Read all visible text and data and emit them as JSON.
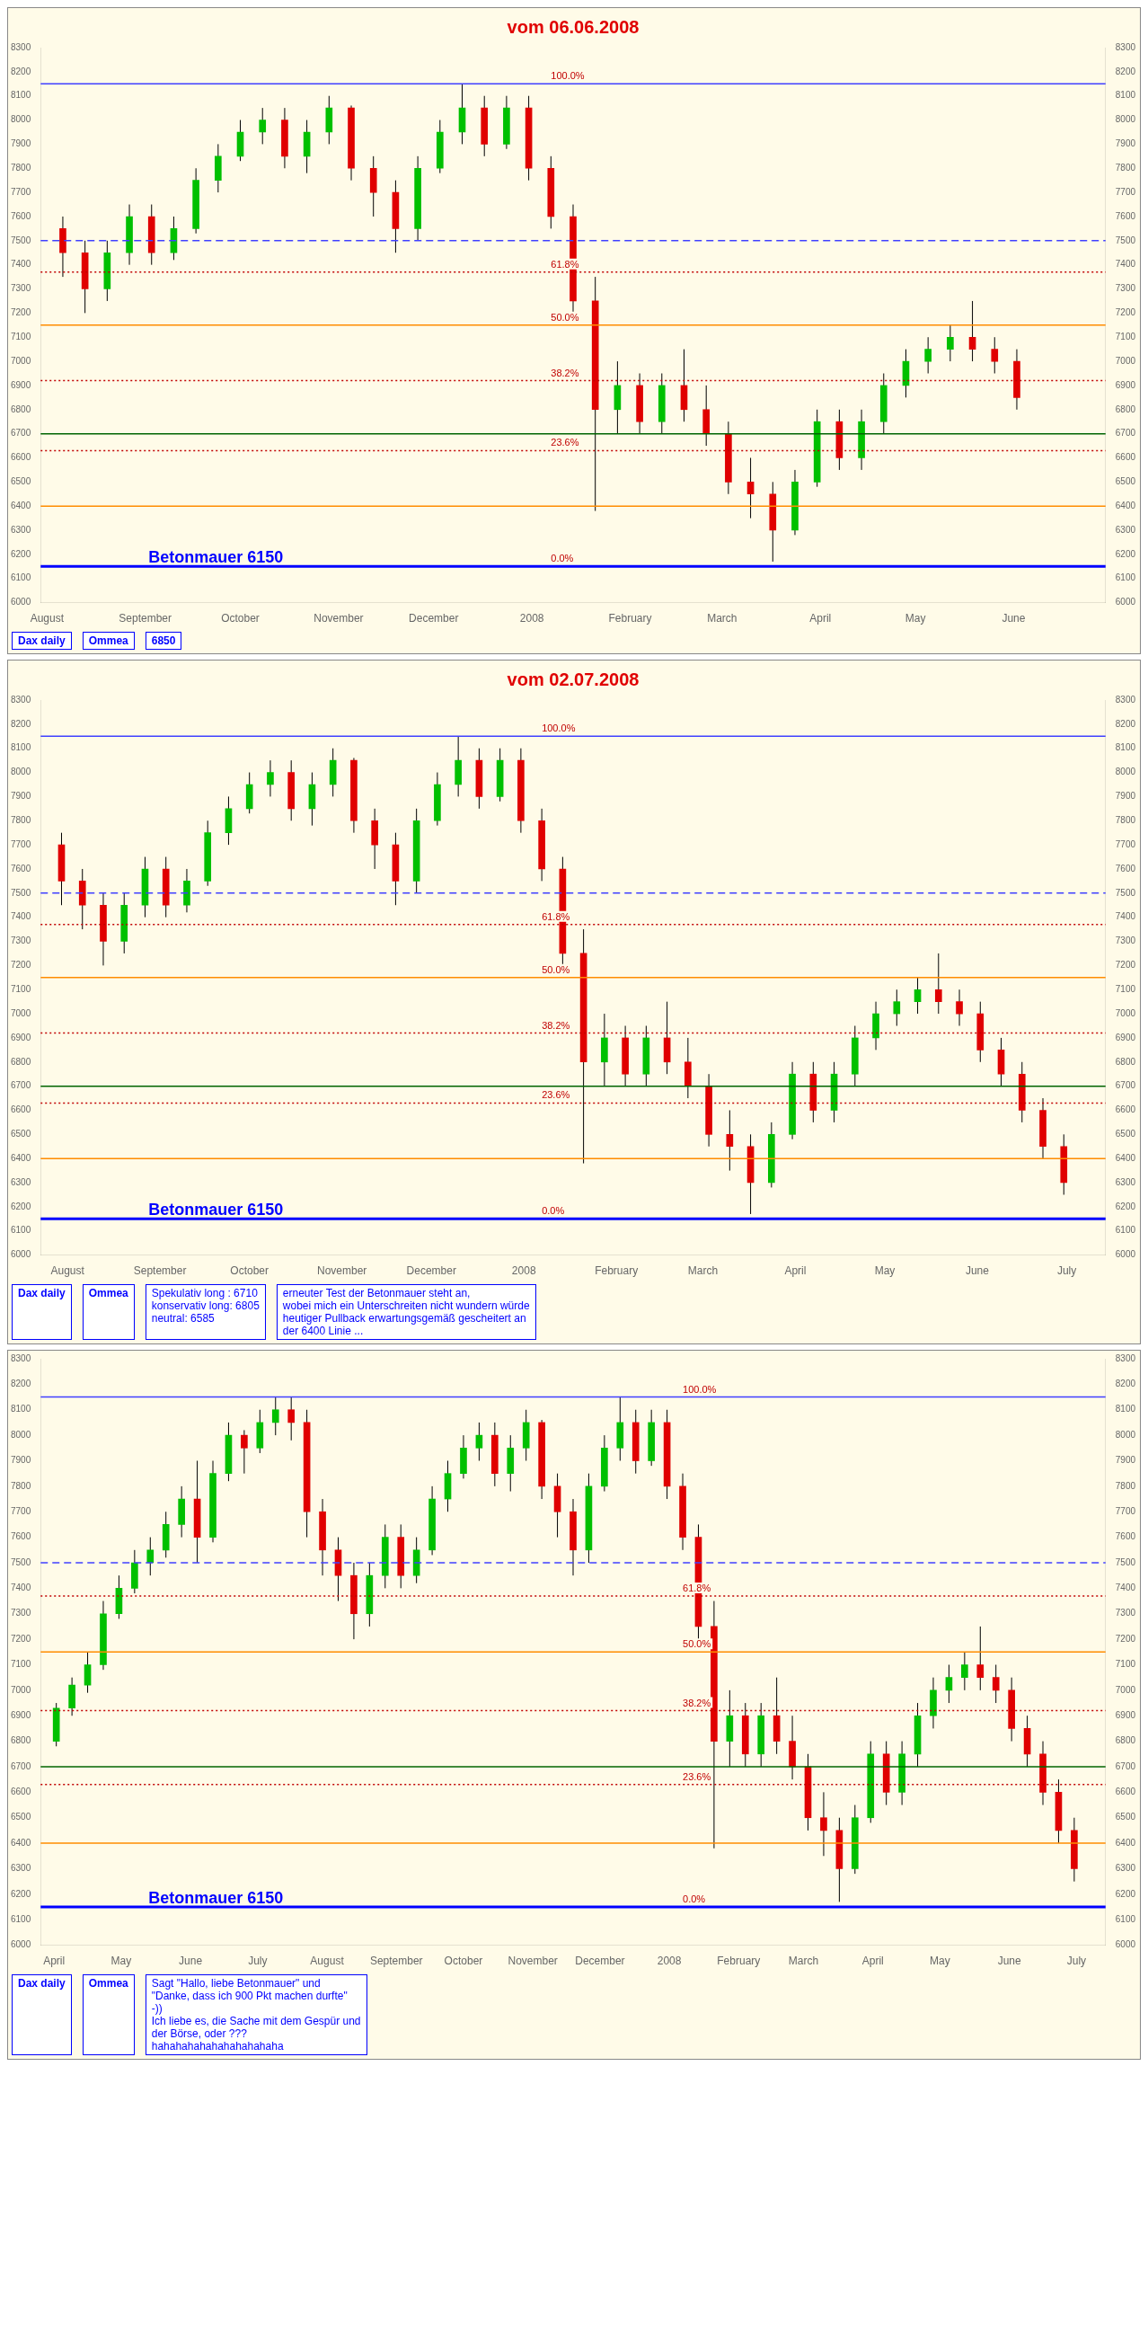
{
  "chart_data": [
    {
      "type": "candlestick",
      "title": "vom 06.06.2008",
      "annotations": [
        "Dax daily",
        "Ommea",
        "6850",
        {
          "text": "100.0%",
          "x": "2008-01-07",
          "y": 8150
        },
        {
          "text": "61.8%",
          "x": "2008-01-07",
          "y": 7370
        },
        {
          "text": "50.0%",
          "x": "2008-01-07",
          "y": 7150
        },
        {
          "text": "38.2%",
          "x": "2008-01-07",
          "y": 6920
        },
        {
          "text": "23.6%",
          "x": "2008-01-07",
          "y": 6630
        },
        {
          "text": "0.0%",
          "x": "2008-01-07",
          "y": 6150
        }
      ],
      "x": [
        "2007-08-06",
        "2007-08-13",
        "2007-08-20",
        "2007-08-27",
        "2007-09-03",
        "2007-09-10",
        "2007-09-17",
        "2007-09-24",
        "2007-10-01",
        "2007-10-08",
        "2007-10-15",
        "2007-10-22",
        "2007-10-29",
        "2007-11-05",
        "2007-11-12",
        "2007-11-19",
        "2007-11-26",
        "2007-12-03",
        "2007-12-10",
        "2007-12-17",
        "2007-12-24",
        "2007-12-31",
        "2008-01-07",
        "2008-01-14",
        "2008-01-21",
        "2008-01-28",
        "2008-02-04",
        "2008-02-11",
        "2008-02-18",
        "2008-02-25",
        "2008-03-03",
        "2008-03-10",
        "2008-03-17",
        "2008-03-24",
        "2008-03-31",
        "2008-04-07",
        "2008-04-14",
        "2008-04-21",
        "2008-04-28",
        "2008-05-05",
        "2008-05-12",
        "2008-05-19",
        "2008-05-26",
        "2008-06-02"
      ],
      "ohlc": [
        [
          7550,
          7600,
          7350,
          7450
        ],
        [
          7450,
          7500,
          7200,
          7300
        ],
        [
          7300,
          7500,
          7250,
          7450
        ],
        [
          7450,
          7650,
          7400,
          7600
        ],
        [
          7600,
          7650,
          7400,
          7450
        ],
        [
          7450,
          7600,
          7420,
          7550
        ],
        [
          7550,
          7800,
          7530,
          7750
        ],
        [
          7750,
          7900,
          7700,
          7850
        ],
        [
          7850,
          8000,
          7830,
          7950
        ],
        [
          7950,
          8050,
          7900,
          8000
        ],
        [
          8000,
          8050,
          7800,
          7850
        ],
        [
          7850,
          8000,
          7780,
          7950
        ],
        [
          7950,
          8100,
          7900,
          8050
        ],
        [
          8050,
          8060,
          7750,
          7800
        ],
        [
          7800,
          7850,
          7600,
          7700
        ],
        [
          7700,
          7750,
          7450,
          7550
        ],
        [
          7550,
          7850,
          7500,
          7800
        ],
        [
          7800,
          8000,
          7780,
          7950
        ],
        [
          7950,
          8150,
          7900,
          8050
        ],
        [
          8050,
          8100,
          7850,
          7900
        ],
        [
          7900,
          8100,
          7880,
          8050
        ],
        [
          8050,
          8100,
          7750,
          7800
        ],
        [
          7800,
          7850,
          7550,
          7600
        ],
        [
          7600,
          7650,
          7200,
          7250
        ],
        [
          7250,
          7350,
          6380,
          6800
        ],
        [
          6800,
          7000,
          6700,
          6900
        ],
        [
          6900,
          6950,
          6700,
          6750
        ],
        [
          6750,
          6950,
          6700,
          6900
        ],
        [
          6900,
          7050,
          6750,
          6800
        ],
        [
          6800,
          6900,
          6650,
          6700
        ],
        [
          6700,
          6750,
          6450,
          6500
        ],
        [
          6500,
          6600,
          6350,
          6450
        ],
        [
          6450,
          6500,
          6170,
          6300
        ],
        [
          6300,
          6550,
          6280,
          6500
        ],
        [
          6500,
          6800,
          6480,
          6750
        ],
        [
          6750,
          6800,
          6550,
          6600
        ],
        [
          6600,
          6800,
          6550,
          6750
        ],
        [
          6750,
          6950,
          6700,
          6900
        ],
        [
          6900,
          7050,
          6850,
          7000
        ],
        [
          7000,
          7100,
          6950,
          7050
        ],
        [
          7050,
          7150,
          7000,
          7100
        ],
        [
          7100,
          7250,
          7000,
          7050
        ],
        [
          7050,
          7100,
          6950,
          7000
        ],
        [
          7000,
          7050,
          6800,
          6850
        ]
      ],
      "xlim": [
        "2007-07-30",
        "2008-06-30"
      ],
      "xticks": [
        {
          "value": "2007-08-01",
          "label": "August"
        },
        {
          "value": "2007-09-01",
          "label": "September"
        },
        {
          "value": "2007-10-01",
          "label": "October"
        },
        {
          "value": "2007-11-01",
          "label": "November"
        },
        {
          "value": "2007-12-01",
          "label": "December"
        },
        {
          "value": "2008-01-01",
          "label": "2008"
        },
        {
          "value": "2008-02-01",
          "label": "February"
        },
        {
          "value": "2008-03-01",
          "label": "March"
        },
        {
          "value": "2008-04-01",
          "label": "April"
        },
        {
          "value": "2008-05-01",
          "label": "May"
        },
        {
          "value": "2008-06-01",
          "label": "June"
        }
      ],
      "ylim": [
        6000,
        8300
      ],
      "yticks": [
        6000,
        6100,
        6200,
        6300,
        6400,
        6500,
        6600,
        6700,
        6800,
        6900,
        7000,
        7100,
        7200,
        7300,
        7400,
        7500,
        7600,
        7700,
        7800,
        7900,
        8000,
        8100,
        8200,
        8300
      ],
      "y2lim": [
        6000,
        8300
      ],
      "y2ticks": [
        6000,
        6100,
        6200,
        6300,
        6400,
        6500,
        6600,
        6700,
        6800,
        6900,
        7000,
        7100,
        7200,
        7300,
        7400,
        7500,
        7600,
        7700,
        7800,
        7900,
        8000,
        8100,
        8200,
        8300
      ],
      "ref_lines": [
        {
          "axis": "y",
          "value": 8150,
          "label": null,
          "color": "#4040ff"
        },
        {
          "axis": "y",
          "value": 7370,
          "label": null,
          "color": "#c00000",
          "line_style": "dotted"
        },
        {
          "axis": "y",
          "value": 7150,
          "label": null,
          "color": "#ff8c00"
        },
        {
          "axis": "y",
          "value": 6920,
          "label": null,
          "color": "#c00000",
          "line_style": "dotted"
        },
        {
          "axis": "y",
          "value": 6630,
          "label": null,
          "color": "#c00000",
          "line_style": "dotted"
        },
        {
          "axis": "y",
          "value": 6700,
          "label": null,
          "color": "#006400"
        },
        {
          "axis": "y",
          "value": 6400,
          "label": null,
          "color": "#ff8c00"
        },
        {
          "axis": "y",
          "value": 7500,
          "label": null,
          "color": "#4040ff",
          "line_style": "dashed"
        },
        {
          "axis": "y",
          "value": 6150,
          "label": "Betonmauer 6150",
          "color": "#0000ff"
        }
      ],
      "grid": false,
      "legend": false
    },
    {
      "type": "candlestick",
      "title": "vom 02.07.2008",
      "annotations": [
        "Dax daily",
        "Ommea",
        {
          "text": "100.0%",
          "x": "2008-01-07",
          "y": 8150
        },
        {
          "text": "61.8%",
          "x": "2008-01-07",
          "y": 7370
        },
        {
          "text": "50.0%",
          "x": "2008-01-07",
          "y": 7150
        },
        {
          "text": "38.2%",
          "x": "2008-01-07",
          "y": 6920
        },
        {
          "text": "23.6%",
          "x": "2008-01-07",
          "y": 6630
        },
        {
          "text": "0.0%",
          "x": "2008-01-07",
          "y": 6150
        },
        "Spekulativ long : 6710\nkonservativ long: 6805\nneutral: 6585",
        "erneuter Test der Betonmauer steht an,\nwobei mich ein Unterschreiten nicht wundern würde\nheutiger Pullback erwartungsgemäß gescheitert an\nder 6400 Linie ..."
      ],
      "x": [
        "2007-07-30",
        "2007-08-06",
        "2007-08-13",
        "2007-08-20",
        "2007-08-27",
        "2007-09-03",
        "2007-09-10",
        "2007-09-17",
        "2007-09-24",
        "2007-10-01",
        "2007-10-08",
        "2007-10-15",
        "2007-10-22",
        "2007-10-29",
        "2007-11-05",
        "2007-11-12",
        "2007-11-19",
        "2007-11-26",
        "2007-12-03",
        "2007-12-10",
        "2007-12-17",
        "2007-12-24",
        "2007-12-31",
        "2008-01-07",
        "2008-01-14",
        "2008-01-21",
        "2008-01-28",
        "2008-02-04",
        "2008-02-11",
        "2008-02-18",
        "2008-02-25",
        "2008-03-03",
        "2008-03-10",
        "2008-03-17",
        "2008-03-24",
        "2008-03-31",
        "2008-04-07",
        "2008-04-14",
        "2008-04-21",
        "2008-04-28",
        "2008-05-05",
        "2008-05-12",
        "2008-05-19",
        "2008-05-26",
        "2008-06-02",
        "2008-06-09",
        "2008-06-16",
        "2008-06-23",
        "2008-06-30"
      ],
      "ohlc": [
        [
          7700,
          7750,
          7450,
          7550
        ],
        [
          7550,
          7600,
          7350,
          7450
        ],
        [
          7450,
          7500,
          7200,
          7300
        ],
        [
          7300,
          7500,
          7250,
          7450
        ],
        [
          7450,
          7650,
          7400,
          7600
        ],
        [
          7600,
          7650,
          7400,
          7450
        ],
        [
          7450,
          7600,
          7420,
          7550
        ],
        [
          7550,
          7800,
          7530,
          7750
        ],
        [
          7750,
          7900,
          7700,
          7850
        ],
        [
          7850,
          8000,
          7830,
          7950
        ],
        [
          7950,
          8050,
          7900,
          8000
        ],
        [
          8000,
          8050,
          7800,
          7850
        ],
        [
          7850,
          8000,
          7780,
          7950
        ],
        [
          7950,
          8100,
          7900,
          8050
        ],
        [
          8050,
          8060,
          7750,
          7800
        ],
        [
          7800,
          7850,
          7600,
          7700
        ],
        [
          7700,
          7750,
          7450,
          7550
        ],
        [
          7550,
          7850,
          7500,
          7800
        ],
        [
          7800,
          8000,
          7780,
          7950
        ],
        [
          7950,
          8150,
          7900,
          8050
        ],
        [
          8050,
          8100,
          7850,
          7900
        ],
        [
          7900,
          8100,
          7880,
          8050
        ],
        [
          8050,
          8100,
          7750,
          7800
        ],
        [
          7800,
          7850,
          7550,
          7600
        ],
        [
          7600,
          7650,
          7200,
          7250
        ],
        [
          7250,
          7350,
          6380,
          6800
        ],
        [
          6800,
          7000,
          6700,
          6900
        ],
        [
          6900,
          6950,
          6700,
          6750
        ],
        [
          6750,
          6950,
          6700,
          6900
        ],
        [
          6900,
          7050,
          6750,
          6800
        ],
        [
          6800,
          6900,
          6650,
          6700
        ],
        [
          6700,
          6750,
          6450,
          6500
        ],
        [
          6500,
          6600,
          6350,
          6450
        ],
        [
          6450,
          6500,
          6170,
          6300
        ],
        [
          6300,
          6550,
          6280,
          6500
        ],
        [
          6500,
          6800,
          6480,
          6750
        ],
        [
          6750,
          6800,
          6550,
          6600
        ],
        [
          6600,
          6800,
          6550,
          6750
        ],
        [
          6750,
          6950,
          6700,
          6900
        ],
        [
          6900,
          7050,
          6850,
          7000
        ],
        [
          7000,
          7100,
          6950,
          7050
        ],
        [
          7050,
          7150,
          7000,
          7100
        ],
        [
          7100,
          7250,
          7000,
          7050
        ],
        [
          7050,
          7100,
          6950,
          7000
        ],
        [
          7000,
          7050,
          6800,
          6850
        ],
        [
          6850,
          6900,
          6700,
          6750
        ],
        [
          6750,
          6800,
          6550,
          6600
        ],
        [
          6600,
          6650,
          6400,
          6450
        ],
        [
          6450,
          6500,
          6250,
          6300
        ]
      ],
      "xlim": [
        "2007-07-23",
        "2008-07-14"
      ],
      "xticks": [
        {
          "value": "2007-08-01",
          "label": "August"
        },
        {
          "value": "2007-09-01",
          "label": "September"
        },
        {
          "value": "2007-10-01",
          "label": "October"
        },
        {
          "value": "2007-11-01",
          "label": "November"
        },
        {
          "value": "2007-12-01",
          "label": "December"
        },
        {
          "value": "2008-01-01",
          "label": "2008"
        },
        {
          "value": "2008-02-01",
          "label": "February"
        },
        {
          "value": "2008-03-01",
          "label": "March"
        },
        {
          "value": "2008-04-01",
          "label": "April"
        },
        {
          "value": "2008-05-01",
          "label": "May"
        },
        {
          "value": "2008-06-01",
          "label": "June"
        },
        {
          "value": "2008-07-01",
          "label": "July"
        }
      ],
      "ylim": [
        6000,
        8300
      ],
      "yticks": [
        6000,
        6100,
        6200,
        6300,
        6400,
        6500,
        6600,
        6700,
        6800,
        6900,
        7000,
        7100,
        7200,
        7300,
        7400,
        7500,
        7600,
        7700,
        7800,
        7900,
        8000,
        8100,
        8200,
        8300
      ],
      "y2lim": [
        6000,
        8300
      ],
      "y2ticks": [
        6000,
        6100,
        6200,
        6300,
        6400,
        6500,
        6600,
        6700,
        6800,
        6900,
        7000,
        7100,
        7200,
        7300,
        7400,
        7500,
        7600,
        7700,
        7800,
        7900,
        8000,
        8100,
        8200,
        8300
      ],
      "ref_lines": [
        {
          "axis": "y",
          "value": 8150,
          "label": null,
          "color": "#4040ff"
        },
        {
          "axis": "y",
          "value": 7370,
          "label": null,
          "color": "#c00000",
          "line_style": "dotted"
        },
        {
          "axis": "y",
          "value": 7150,
          "label": null,
          "color": "#ff8c00"
        },
        {
          "axis": "y",
          "value": 6920,
          "label": null,
          "color": "#c00000",
          "line_style": "dotted"
        },
        {
          "axis": "y",
          "value": 6630,
          "label": null,
          "color": "#c00000",
          "line_style": "dotted"
        },
        {
          "axis": "y",
          "value": 6700,
          "label": null,
          "color": "#006400"
        },
        {
          "axis": "y",
          "value": 6400,
          "label": null,
          "color": "#ff8c00"
        },
        {
          "axis": "y",
          "value": 7500,
          "label": null,
          "color": "#4040ff",
          "line_style": "dashed"
        },
        {
          "axis": "y",
          "value": 6150,
          "label": "Betonmauer 6150",
          "color": "#0000ff"
        }
      ],
      "grid": false,
      "legend": false
    },
    {
      "type": "candlestick",
      "annotations": [
        "Dax daily",
        "Ommea",
        {
          "text": "100.0%",
          "x": "2008-01-07",
          "y": 8150
        },
        {
          "text": "61.8%",
          "x": "2008-01-07",
          "y": 7370
        },
        {
          "text": "50.0%",
          "x": "2008-01-07",
          "y": 7150
        },
        {
          "text": "38.2%",
          "x": "2008-01-07",
          "y": 6920
        },
        {
          "text": "23.6%",
          "x": "2008-01-07",
          "y": 6630
        },
        {
          "text": "0.0%",
          "x": "2008-01-07",
          "y": 6150
        },
        "Sagt \"Hallo, liebe Betonmauer\" und\n\"Danke, dass ich 900 Pkt machen durfte\"\n-))\nIch liebe es, die Sache mit dem Gespür und\nder Börse, oder ???\nhahahahahahahahahahaha"
      ],
      "x": [
        "2007-04-02",
        "2007-04-09",
        "2007-04-16",
        "2007-04-23",
        "2007-04-30",
        "2007-05-07",
        "2007-05-14",
        "2007-05-21",
        "2007-05-28",
        "2007-06-04",
        "2007-06-11",
        "2007-06-18",
        "2007-06-25",
        "2007-07-02",
        "2007-07-09",
        "2007-07-16",
        "2007-07-23",
        "2007-07-30",
        "2007-08-06",
        "2007-08-13",
        "2007-08-20",
        "2007-08-27",
        "2007-09-03",
        "2007-09-10",
        "2007-09-17",
        "2007-09-24",
        "2007-10-01",
        "2007-10-08",
        "2007-10-15",
        "2007-10-22",
        "2007-10-29",
        "2007-11-05",
        "2007-11-12",
        "2007-11-19",
        "2007-11-26",
        "2007-12-03",
        "2007-12-10",
        "2007-12-17",
        "2007-12-24",
        "2007-12-31",
        "2008-01-07",
        "2008-01-14",
        "2008-01-21",
        "2008-01-28",
        "2008-02-04",
        "2008-02-11",
        "2008-02-18",
        "2008-02-25",
        "2008-03-03",
        "2008-03-10",
        "2008-03-17",
        "2008-03-24",
        "2008-03-31",
        "2008-04-07",
        "2008-04-14",
        "2008-04-21",
        "2008-04-28",
        "2008-05-05",
        "2008-05-12",
        "2008-05-19",
        "2008-05-26",
        "2008-06-02",
        "2008-06-09",
        "2008-06-16",
        "2008-06-23",
        "2008-06-30"
      ],
      "ohlc": [
        [
          6800,
          6950,
          6780,
          6930
        ],
        [
          6930,
          7050,
          6900,
          7020
        ],
        [
          7020,
          7150,
          6990,
          7100
        ],
        [
          7100,
          7350,
          7080,
          7300
        ],
        [
          7300,
          7450,
          7280,
          7400
        ],
        [
          7400,
          7550,
          7380,
          7500
        ],
        [
          7500,
          7600,
          7450,
          7550
        ],
        [
          7550,
          7700,
          7520,
          7650
        ],
        [
          7650,
          7800,
          7600,
          7750
        ],
        [
          7750,
          7900,
          7500,
          7600
        ],
        [
          7600,
          7900,
          7580,
          7850
        ],
        [
          7850,
          8050,
          7820,
          8000
        ],
        [
          8000,
          8020,
          7850,
          7950
        ],
        [
          7950,
          8100,
          7930,
          8050
        ],
        [
          8050,
          8150,
          8000,
          8100
        ],
        [
          8100,
          8150,
          7980,
          8050
        ],
        [
          8050,
          8100,
          7600,
          7700
        ],
        [
          7700,
          7750,
          7450,
          7550
        ],
        [
          7550,
          7600,
          7350,
          7450
        ],
        [
          7450,
          7500,
          7200,
          7300
        ],
        [
          7300,
          7500,
          7250,
          7450
        ],
        [
          7450,
          7650,
          7400,
          7600
        ],
        [
          7600,
          7650,
          7400,
          7450
        ],
        [
          7450,
          7600,
          7420,
          7550
        ],
        [
          7550,
          7800,
          7530,
          7750
        ],
        [
          7750,
          7900,
          7700,
          7850
        ],
        [
          7850,
          8000,
          7830,
          7950
        ],
        [
          7950,
          8050,
          7900,
          8000
        ],
        [
          8000,
          8050,
          7800,
          7850
        ],
        [
          7850,
          8000,
          7780,
          7950
        ],
        [
          7950,
          8100,
          7900,
          8050
        ],
        [
          8050,
          8060,
          7750,
          7800
        ],
        [
          7800,
          7850,
          7600,
          7700
        ],
        [
          7700,
          7750,
          7450,
          7550
        ],
        [
          7550,
          7850,
          7500,
          7800
        ],
        [
          7800,
          8000,
          7780,
          7950
        ],
        [
          7950,
          8150,
          7900,
          8050
        ],
        [
          8050,
          8100,
          7850,
          7900
        ],
        [
          7900,
          8100,
          7880,
          8050
        ],
        [
          8050,
          8100,
          7750,
          7800
        ],
        [
          7800,
          7850,
          7550,
          7600
        ],
        [
          7600,
          7650,
          7200,
          7250
        ],
        [
          7250,
          7350,
          6380,
          6800
        ],
        [
          6800,
          7000,
          6700,
          6900
        ],
        [
          6900,
          6950,
          6700,
          6750
        ],
        [
          6750,
          6950,
          6700,
          6900
        ],
        [
          6900,
          7050,
          6750,
          6800
        ],
        [
          6800,
          6900,
          6650,
          6700
        ],
        [
          6700,
          6750,
          6450,
          6500
        ],
        [
          6500,
          6600,
          6350,
          6450
        ],
        [
          6450,
          6500,
          6170,
          6300
        ],
        [
          6300,
          6550,
          6280,
          6500
        ],
        [
          6500,
          6800,
          6480,
          6750
        ],
        [
          6750,
          6800,
          6550,
          6600
        ],
        [
          6600,
          6800,
          6550,
          6750
        ],
        [
          6750,
          6950,
          6700,
          6900
        ],
        [
          6900,
          7050,
          6850,
          7000
        ],
        [
          7000,
          7100,
          6950,
          7050
        ],
        [
          7050,
          7150,
          7000,
          7100
        ],
        [
          7100,
          7250,
          7000,
          7050
        ],
        [
          7050,
          7100,
          6950,
          7000
        ],
        [
          7000,
          7050,
          6800,
          6850
        ],
        [
          6850,
          6900,
          6700,
          6750
        ],
        [
          6750,
          6800,
          6550,
          6600
        ],
        [
          6600,
          6650,
          6400,
          6450
        ],
        [
          6450,
          6500,
          6250,
          6300
        ]
      ],
      "xlim": [
        "2007-03-26",
        "2008-07-14"
      ],
      "xticks": [
        {
          "value": "2007-04-01",
          "label": "April"
        },
        {
          "value": "2007-05-01",
          "label": "May"
        },
        {
          "value": "2007-06-01",
          "label": "June"
        },
        {
          "value": "2007-07-01",
          "label": "July"
        },
        {
          "value": "2007-08-01",
          "label": "August"
        },
        {
          "value": "2007-09-01",
          "label": "September"
        },
        {
          "value": "2007-10-01",
          "label": "October"
        },
        {
          "value": "2007-11-01",
          "label": "November"
        },
        {
          "value": "2007-12-01",
          "label": "December"
        },
        {
          "value": "2008-01-01",
          "label": "2008"
        },
        {
          "value": "2008-02-01",
          "label": "February"
        },
        {
          "value": "2008-03-01",
          "label": "March"
        },
        {
          "value": "2008-04-01",
          "label": "April"
        },
        {
          "value": "2008-05-01",
          "label": "May"
        },
        {
          "value": "2008-06-01",
          "label": "June"
        },
        {
          "value": "2008-07-01",
          "label": "July"
        }
      ],
      "ylim": [
        6000,
        8300
      ],
      "yticks": [
        6000,
        6100,
        6200,
        6300,
        6400,
        6500,
        6600,
        6700,
        6800,
        6900,
        7000,
        7100,
        7200,
        7300,
        7400,
        7500,
        7600,
        7700,
        7800,
        7900,
        8000,
        8100,
        8200,
        8300
      ],
      "y2lim": [
        6000,
        8300
      ],
      "y2ticks": [
        6000,
        6100,
        6200,
        6300,
        6400,
        6500,
        6600,
        6700,
        6800,
        6900,
        7000,
        7100,
        7200,
        7300,
        7400,
        7500,
        7600,
        7700,
        7800,
        7900,
        8000,
        8100,
        8200,
        8300
      ],
      "ref_lines": [
        {
          "axis": "y",
          "value": 8150,
          "label": null,
          "color": "#4040ff"
        },
        {
          "axis": "y",
          "value": 7370,
          "label": null,
          "color": "#c00000",
          "line_style": "dotted"
        },
        {
          "axis": "y",
          "value": 7150,
          "label": null,
          "color": "#ff8c00"
        },
        {
          "axis": "y",
          "value": 6920,
          "label": null,
          "color": "#c00000",
          "line_style": "dotted"
        },
        {
          "axis": "y",
          "value": 6630,
          "label": null,
          "color": "#c00000",
          "line_style": "dotted"
        },
        {
          "axis": "y",
          "value": 6700,
          "label": null,
          "color": "#006400"
        },
        {
          "axis": "y",
          "value": 6400,
          "label": null,
          "color": "#ff8c00"
        },
        {
          "axis": "y",
          "value": 7500,
          "label": null,
          "color": "#4040ff",
          "line_style": "dashed"
        },
        {
          "axis": "y",
          "value": 6150,
          "label": "Betonmauer 6150",
          "color": "#0000ff"
        }
      ],
      "grid": false,
      "legend": false
    }
  ]
}
